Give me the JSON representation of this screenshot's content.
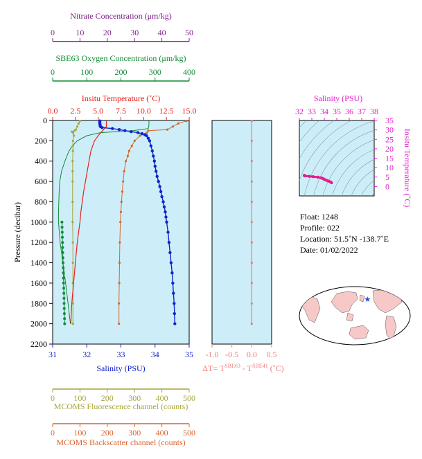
{
  "chart_data": {
    "type": "line",
    "colors": {
      "nitrate": "#7f1f86",
      "oxygen": "#128a36",
      "temperature": "#e8221b",
      "salinity": "#1122cc",
      "fluorescence": "#a8a43a",
      "backscatter": "#d9642a",
      "delta_t": "#f07a7a",
      "ts_axis": "#e020c8",
      "ts_points": "#e0208c",
      "panel_bg": "#cdeef8",
      "map_land": "#f6c8c8",
      "map_ocean": "#ffffff",
      "float_marker": "#2244ee"
    },
    "axes": {
      "pressure": {
        "label": "Pressure (decibar)",
        "lim": [
          2200,
          0
        ],
        "ticks": [
          "0",
          "200",
          "400",
          "600",
          "800",
          "1000",
          "1200",
          "1400",
          "1600",
          "1800",
          "2000",
          "2200"
        ]
      },
      "nitrate": {
        "label": "Nitrate Concentration (μm/kg)",
        "lim": [
          0,
          50
        ],
        "ticks": [
          "0",
          "10",
          "20",
          "30",
          "40",
          "50"
        ]
      },
      "oxygen": {
        "label": "SBE63 Oxygen Concentration (μm/kg)",
        "lim": [
          0,
          400
        ],
        "ticks": [
          "0",
          "100",
          "200",
          "300",
          "400"
        ]
      },
      "temperature": {
        "label": "Insitu Temperature (˚C)",
        "lim": [
          0,
          15
        ],
        "ticks": [
          "0.0",
          "2.5",
          "5.0",
          "7.5",
          "10.0",
          "12.5",
          "15.0"
        ]
      },
      "salinity": {
        "label": "Salinity (PSU)",
        "lim": [
          31,
          35
        ],
        "ticks": [
          "31",
          "32",
          "33",
          "34",
          "35"
        ]
      },
      "fluorescence": {
        "label": "MCOMS Fluorescence channel (counts)",
        "lim": [
          0,
          500
        ],
        "ticks": [
          "0",
          "100",
          "200",
          "300",
          "400",
          "500"
        ]
      },
      "backscatter": {
        "label": "MCOMS Backscatter channel (counts)",
        "lim": [
          0,
          500
        ],
        "ticks": [
          "0",
          "100",
          "200",
          "300",
          "400",
          "500"
        ]
      },
      "delta_t": {
        "label_main": "ΔT= T",
        "sup1": "SBE63",
        "label_mid": " - T",
        "sup2": "SBE41",
        "label_end": " (˚C)",
        "lim": [
          -1.0,
          0.5
        ],
        "ticks": [
          "-1.0",
          "-0.5",
          "0.0",
          "0.5"
        ]
      },
      "ts_salinity": {
        "label": "Salinity (PSU)",
        "lim": [
          32,
          38
        ],
        "ticks": [
          "32",
          "33",
          "34",
          "35",
          "36",
          "37",
          "38"
        ]
      },
      "ts_temperature": {
        "label": "Insitu Temperature (˚C)",
        "lim": [
          -5,
          35
        ],
        "ticks": [
          "0",
          "5",
          "10",
          "15",
          "20",
          "25",
          "30",
          "35"
        ]
      }
    },
    "series": [
      {
        "name": "Salinity",
        "pressure": [
          5,
          10,
          20,
          30,
          40,
          50,
          60,
          70,
          80,
          90,
          100,
          110,
          120,
          130,
          140,
          150,
          175,
          200,
          250,
          300,
          350,
          400,
          450,
          500,
          550,
          600,
          650,
          700,
          750,
          800,
          850,
          900,
          950,
          1000,
          1100,
          1200,
          1300,
          1400,
          1500,
          1600,
          1700,
          1800,
          1900,
          2000
        ],
        "values": [
          32.38,
          32.38,
          32.38,
          32.38,
          32.39,
          32.39,
          32.4,
          32.45,
          32.75,
          32.95,
          33.12,
          33.3,
          33.5,
          33.62,
          33.7,
          33.75,
          33.8,
          33.84,
          33.88,
          33.92,
          33.95,
          33.98,
          34.0,
          34.03,
          34.06,
          34.1,
          34.14,
          34.17,
          34.2,
          34.24,
          34.27,
          34.3,
          34.32,
          34.34,
          34.38,
          34.41,
          34.44,
          34.47,
          34.5,
          34.52,
          34.54,
          34.56,
          34.57,
          34.58
        ]
      },
      {
        "name": "Insitu Temperature",
        "pressure": [
          5,
          20,
          40,
          60,
          70,
          80,
          90,
          100,
          110,
          120,
          130,
          150,
          175,
          200,
          250,
          300,
          400,
          500,
          600,
          700,
          800,
          900,
          1000,
          1100,
          1200,
          1300,
          1400,
          1500,
          1600,
          1700,
          1800,
          1900,
          1980,
          2000
        ],
        "values": [
          5.9,
          5.9,
          5.9,
          5.9,
          5.8,
          5.7,
          5.6,
          5.5,
          5.4,
          5.3,
          5.2,
          5.0,
          4.8,
          4.6,
          4.4,
          4.2,
          4.0,
          3.8,
          3.6,
          3.4,
          3.25,
          3.1,
          3.0,
          2.85,
          2.7,
          2.6,
          2.5,
          2.4,
          2.3,
          2.2,
          2.1,
          2.05,
          2.0,
          2.0
        ]
      },
      {
        "name": "Nitrate",
        "pressure": [
          1000,
          1050,
          1100,
          1150,
          1200,
          1250,
          1300,
          1350,
          1400,
          1450,
          1500,
          1550,
          1600,
          1650,
          1700,
          1750,
          1800,
          1850,
          1900,
          1950,
          2000
        ],
        "values": [
          3.4,
          3.45,
          3.5,
          3.55,
          3.6,
          3.65,
          3.7,
          3.75,
          3.8,
          3.85,
          3.9,
          3.95,
          4.0,
          4.05,
          4.1,
          4.15,
          4.2,
          4.25,
          4.3,
          4.35,
          4.4
        ]
      },
      {
        "name": "Oxygen",
        "pressure": [
          5,
          50,
          80,
          100,
          120,
          150,
          200,
          250,
          300,
          400,
          500,
          600,
          700,
          800,
          900,
          1000,
          1200,
          1400,
          1600,
          1800,
          2000
        ],
        "values": [
          282,
          282,
          280,
          235,
          140,
          100,
          72,
          58,
          48,
          36,
          26,
          21,
          19,
          18,
          17,
          17,
          22,
          30,
          38,
          45,
          52
        ]
      },
      {
        "name": "Fluorescence",
        "pressure": [
          5,
          30,
          60,
          90,
          100,
          110,
          120,
          150,
          200,
          250,
          300,
          400,
          500,
          600,
          800,
          1000,
          1200,
          1400,
          1600,
          1800,
          2000
        ],
        "values": [
          100,
          95,
          90,
          85,
          80,
          70,
          75,
          78,
          74,
          74,
          74,
          73,
          73,
          73,
          73,
          73,
          74,
          74,
          74,
          74,
          74
        ]
      },
      {
        "name": "Backscatter",
        "pressure": [
          5,
          30,
          60,
          90,
          100,
          120,
          150,
          200,
          250,
          300,
          350,
          400,
          500,
          600,
          700,
          800,
          900,
          1000,
          1200,
          1400,
          1600,
          1800,
          2000
        ],
        "values": [
          490,
          460,
          440,
          420,
          350,
          345,
          320,
          300,
          290,
          280,
          275,
          268,
          262,
          258,
          255,
          252,
          250,
          248,
          246,
          245,
          244,
          243,
          243
        ]
      },
      {
        "name": "Delta T",
        "pressure": [
          5,
          200,
          400,
          600,
          800,
          1000,
          1200,
          1400,
          1600,
          1800,
          2000
        ],
        "values": [
          0.0,
          0.0,
          0.0,
          0.0,
          0.0,
          0.0,
          0.0,
          0.0,
          0.0,
          0.0,
          0.0
        ]
      },
      {
        "name": "T-S",
        "salinity": [
          32.4,
          32.4,
          32.45,
          32.8,
          33.1,
          33.5,
          33.75,
          33.85,
          33.95,
          34.05,
          34.2,
          34.35,
          34.5,
          34.58
        ],
        "temperature": [
          5.9,
          5.8,
          5.6,
          5.4,
          5.2,
          4.9,
          4.6,
          4.3,
          4.0,
          3.6,
          3.2,
          2.8,
          2.4,
          2.0
        ]
      }
    ]
  },
  "float_info": {
    "float": "Float:  1248",
    "profile": "Profile:  022",
    "location": "Location:  51.5˚N  -138.7˚E",
    "date": "Date:  01/02/2022"
  },
  "map": {
    "float_lon": -138.7,
    "float_lat": 51.5
  }
}
